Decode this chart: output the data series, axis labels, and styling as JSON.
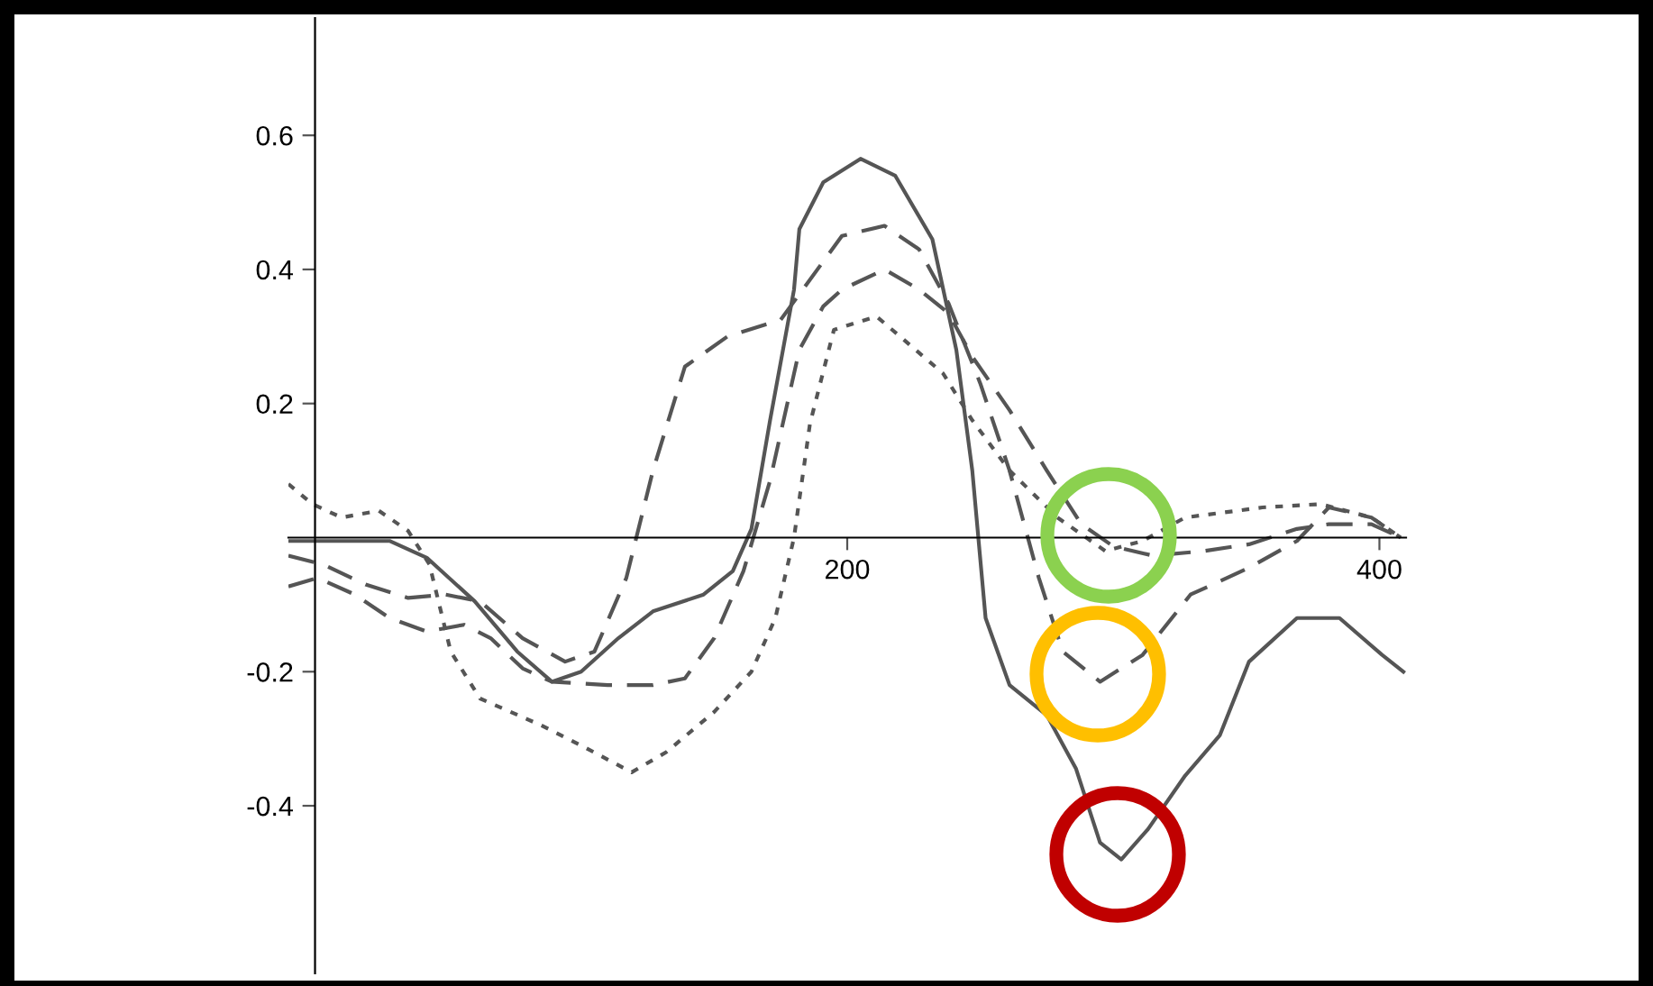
{
  "chart_data": {
    "type": "line",
    "xlim": [
      -10,
      410
    ],
    "ylim": [
      -0.65,
      0.775
    ],
    "xticks": [
      200,
      400
    ],
    "yticks": [
      -0.4,
      -0.2,
      0.2,
      0.4,
      0.6
    ],
    "grid": false,
    "legend": false,
    "marker": "none",
    "series": [
      {
        "color": "#555555",
        "line_style": "solid",
        "x": [
          -10,
          5,
          28,
          42,
          60,
          76,
          89,
          100,
          114,
          127,
          146,
          157,
          164,
          171,
          180,
          182,
          191,
          205,
          218,
          232,
          241,
          247,
          252,
          261,
          275,
          286,
          295,
          303,
          313,
          327,
          340,
          351,
          369,
          385,
          401,
          409
        ],
        "values": [
          -0.005,
          -0.005,
          -0.005,
          -0.03,
          -0.095,
          -0.17,
          -0.215,
          -0.2,
          -0.15,
          -0.11,
          -0.085,
          -0.05,
          0.013,
          0.175,
          0.37,
          0.46,
          0.53,
          0.565,
          0.54,
          0.445,
          0.28,
          0.1,
          -0.12,
          -0.22,
          -0.265,
          -0.345,
          -0.455,
          -0.48,
          -0.435,
          -0.355,
          -0.295,
          -0.185,
          -0.12,
          -0.12,
          -0.175,
          -0.2
        ]
      },
      {
        "color": "#555555",
        "line_style": "dashed",
        "x": [
          -10,
          3,
          19,
          35,
          49,
          62,
          78,
          94,
          105,
          117,
          127,
          139,
          155,
          175,
          198,
          214,
          227,
          238,
          250,
          261,
          272,
          281,
          295,
          311,
          329,
          351,
          369,
          381,
          397,
          408
        ],
        "values": [
          -0.027,
          -0.04,
          -0.07,
          -0.09,
          -0.085,
          -0.095,
          -0.15,
          -0.185,
          -0.17,
          -0.06,
          0.1,
          0.255,
          0.3,
          0.325,
          0.45,
          0.465,
          0.43,
          0.35,
          0.23,
          0.1,
          -0.06,
          -0.17,
          -0.215,
          -0.175,
          -0.085,
          -0.045,
          -0.005,
          0.045,
          0.03,
          0.0
        ]
      },
      {
        "color": "#555555",
        "line_style": "dashed",
        "x": [
          -10,
          1,
          15,
          28,
          42,
          56,
          66,
          78,
          89,
          110,
          127,
          139,
          150,
          161,
          171,
          182,
          191,
          198,
          214,
          227,
          238,
          247,
          261,
          275,
          288,
          300,
          315,
          334,
          351,
          369,
          381,
          397,
          408
        ],
        "values": [
          -0.073,
          -0.06,
          -0.085,
          -0.12,
          -0.14,
          -0.13,
          -0.15,
          -0.195,
          -0.215,
          -0.22,
          -0.22,
          -0.21,
          -0.15,
          -0.05,
          0.085,
          0.28,
          0.345,
          0.37,
          0.4,
          0.37,
          0.335,
          0.27,
          0.19,
          0.1,
          0.02,
          -0.013,
          -0.027,
          -0.02,
          -0.01,
          0.013,
          0.02,
          0.02,
          0.0
        ]
      },
      {
        "color": "#555555",
        "line_style": "dotted",
        "x": [
          -10,
          -1,
          10,
          24,
          35,
          43,
          51,
          62,
          85,
          100,
          119,
          132,
          150,
          164,
          173,
          180,
          186,
          195,
          211,
          236,
          247,
          261,
          279,
          297,
          311,
          327,
          356,
          378,
          397,
          408
        ],
        "values": [
          0.08,
          0.05,
          0.03,
          0.04,
          0.01,
          -0.04,
          -0.17,
          -0.24,
          -0.28,
          -0.31,
          -0.35,
          -0.32,
          -0.26,
          -0.2,
          -0.12,
          0.0,
          0.17,
          0.31,
          0.33,
          0.245,
          0.175,
          0.1,
          0.03,
          -0.02,
          -0.005,
          0.03,
          0.045,
          0.05,
          0.03,
          0.0
        ]
      }
    ]
  }
}
